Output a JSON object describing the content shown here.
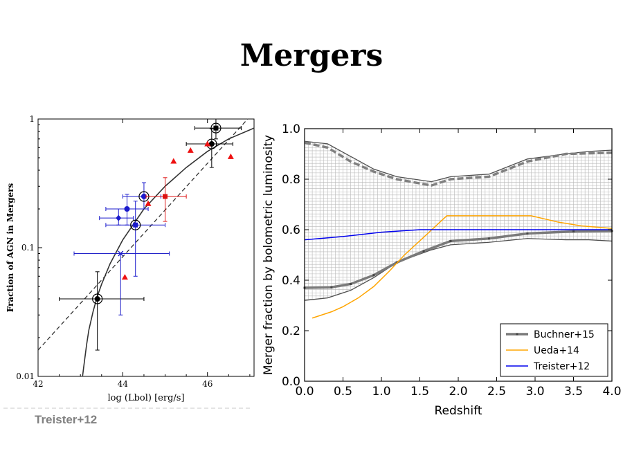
{
  "slide": {
    "title": "Mergers",
    "caption": "Treister+12"
  },
  "chart_data": [
    {
      "type": "scatter",
      "xlabel": "log (Lbol) [erg/s]",
      "ylabel": "Fraction of AGN in Mergers",
      "xscale": "linear",
      "yscale": "log",
      "xlim": [
        42,
        47.1
      ],
      "ylim": [
        0.01,
        1
      ],
      "x_ticks": [
        42,
        44,
        46
      ],
      "y_ticks": [
        {
          "v": 0.01,
          "label": "0.01"
        },
        {
          "v": 0.1,
          "label": "0.1"
        },
        {
          "v": 1,
          "label": "1"
        }
      ],
      "points": [
        {
          "x": 43.4,
          "y": 0.04,
          "marker": "circle",
          "color": "#000000",
          "ringed": true,
          "xerr": [
            0.9,
            1.1
          ],
          "yerr": [
            0.024,
            0.025
          ]
        },
        {
          "x": 43.95,
          "y": 0.09,
          "marker": "x",
          "color": "#2020c8",
          "ringed": false,
          "xerr": [
            1.1,
            1.15
          ],
          "yerr": [
            0.06,
            0.0
          ]
        },
        {
          "x": 43.9,
          "y": 0.17,
          "marker": "diamond",
          "color": "#1a1acc",
          "ringed": false,
          "xerr": [
            0.45,
            0.35
          ],
          "yerr": [
            0.02,
            0.03
          ]
        },
        {
          "x": 44.1,
          "y": 0.2,
          "marker": "circle",
          "color": "#1a1acc",
          "ringed": false,
          "xerr": [
            0.5,
            0.5
          ],
          "yerr": [
            0.05,
            0.06
          ]
        },
        {
          "x": 44.3,
          "y": 0.15,
          "marker": "square",
          "color": "#1a1acc",
          "ringed": true,
          "xerr": [
            0.7,
            0.7
          ],
          "yerr": [
            0.09,
            0.08
          ]
        },
        {
          "x": 44.5,
          "y": 0.25,
          "marker": "circle",
          "color": "#1a1acc",
          "ringed": true,
          "xerr": [
            0.5,
            0.4
          ],
          "yerr": [
            0.05,
            0.07
          ]
        },
        {
          "x": 45.0,
          "y": 0.25,
          "marker": "square",
          "color": "#dd1111",
          "ringed": false,
          "xerr": [
            0.45,
            0.5
          ],
          "yerr": [
            0.09,
            0.1
          ]
        },
        {
          "x": 46.1,
          "y": 0.64,
          "marker": "circle",
          "color": "#000000",
          "ringed": true,
          "xerr": [
            0.6,
            0.5
          ],
          "yerr": [
            0.22,
            0.2
          ]
        },
        {
          "x": 46.2,
          "y": 0.85,
          "marker": "square",
          "color": "#000000",
          "ringed": true,
          "xerr": [
            0.5,
            0.6
          ],
          "yerr": [
            0.15,
            0.15
          ]
        }
      ],
      "triangles": [
        {
          "x": 44.05,
          "y": 0.059
        },
        {
          "x": 44.6,
          "y": 0.22
        },
        {
          "x": 45.2,
          "y": 0.47
        },
        {
          "x": 45.6,
          "y": 0.57
        },
        {
          "x": 46.0,
          "y": 0.64
        },
        {
          "x": 46.55,
          "y": 0.51
        }
      ],
      "triangle_color": "#ee1111",
      "fit_solid": {
        "x": [
          43.05,
          43.1,
          43.15,
          43.2,
          43.3,
          43.4,
          43.5,
          43.7,
          44.0,
          44.5,
          45.0,
          45.5,
          46.0,
          46.5,
          47.1
        ],
        "y": [
          0.01,
          0.0135,
          0.018,
          0.023,
          0.032,
          0.042,
          0.052,
          0.075,
          0.115,
          0.2,
          0.3,
          0.42,
          0.56,
          0.7,
          0.85
        ]
      },
      "fit_dashed": {
        "x": [
          42.0,
          46.95
        ],
        "y": [
          0.016,
          1.0
        ]
      }
    },
    {
      "type": "line",
      "xlabel": "Redshift",
      "ylabel": "Merger fraction by bolometric luminosity",
      "xlim": [
        0,
        4.0
      ],
      "ylim": [
        0,
        1.0
      ],
      "x_ticks": [
        0.0,
        0.5,
        1.0,
        1.5,
        2.0,
        2.5,
        3.0,
        3.5,
        4.0
      ],
      "y_ticks": [
        0.0,
        0.2,
        0.4,
        0.6,
        0.8,
        1.0
      ],
      "legend_position": "bottom-right",
      "band": {
        "x": [
          0.0,
          0.3,
          0.6,
          0.9,
          1.2,
          1.65,
          1.9,
          2.4,
          2.9,
          3.4,
          3.7,
          4.0
        ],
        "upper": [
          0.95,
          0.94,
          0.89,
          0.84,
          0.81,
          0.79,
          0.81,
          0.82,
          0.88,
          0.9,
          0.91,
          0.915
        ],
        "lower": [
          0.32,
          0.33,
          0.36,
          0.41,
          0.47,
          0.52,
          0.54,
          0.55,
          0.565,
          0.56,
          0.56,
          0.555
        ]
      },
      "series": [
        {
          "name": "Buchner+15",
          "color": "#7a7a7a",
          "x": [
            0.0,
            0.35,
            0.6,
            0.9,
            1.2,
            1.55,
            1.9,
            2.4,
            2.9,
            3.5,
            4.0
          ],
          "y": [
            0.37,
            0.372,
            0.385,
            0.42,
            0.47,
            0.515,
            0.555,
            0.565,
            0.585,
            0.593,
            0.595
          ]
        },
        {
          "name": "Ueda+14",
          "color": "#ffa500",
          "x": [
            0.1,
            0.35,
            0.5,
            0.7,
            0.9,
            1.1,
            1.3,
            1.55,
            1.85,
            2.3,
            2.95,
            3.3,
            3.6,
            4.0
          ],
          "y": [
            0.25,
            0.275,
            0.295,
            0.33,
            0.375,
            0.435,
            0.5,
            0.57,
            0.655,
            0.655,
            0.655,
            0.63,
            0.615,
            0.605
          ]
        },
        {
          "name": "Treister+12",
          "color": "#0000ee",
          "x": [
            0.0,
            0.5,
            1.0,
            1.5,
            2.0,
            2.5,
            3.0,
            3.5,
            4.0
          ],
          "y": [
            0.56,
            0.573,
            0.59,
            0.6,
            0.6,
            0.6,
            0.6,
            0.6,
            0.6
          ]
        }
      ],
      "buchner_upper_dashed": {
        "x": [
          0.0,
          0.3,
          0.6,
          0.9,
          1.2,
          1.65,
          1.9,
          2.4,
          2.9,
          3.4,
          4.0
        ],
        "y": [
          0.945,
          0.925,
          0.87,
          0.83,
          0.8,
          0.775,
          0.8,
          0.81,
          0.87,
          0.9,
          0.905
        ]
      }
    }
  ]
}
